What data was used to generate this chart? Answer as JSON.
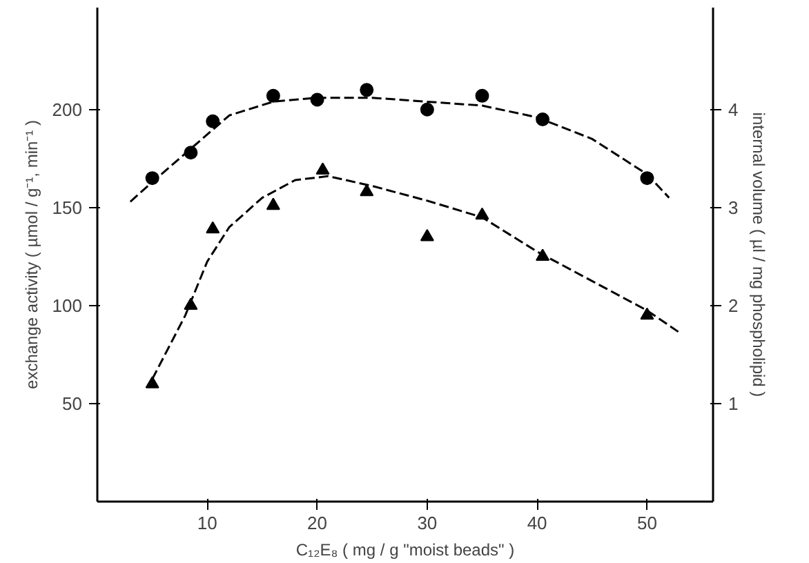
{
  "chart_data": {
    "type": "scatter",
    "xlabel": "C₁₂E₈ ( mg / g \"moist beads\" )",
    "ylabel": "exchange activity ( µmol / g⁻¹, min⁻¹ )",
    "y2label": "internal volume ( µl / mg phospholipid )",
    "xlim": [
      0,
      56
    ],
    "xticks": [
      10,
      20,
      30,
      40,
      50
    ],
    "ylim": [
      0,
      252
    ],
    "yticks": [
      50,
      100,
      150,
      200
    ],
    "y2lim": [
      0,
      5.04
    ],
    "y2ticks": [
      1,
      2,
      3,
      4
    ],
    "grid": false,
    "series": [
      {
        "marker": "circle",
        "color": "#000000",
        "x": [
          5,
          8.5,
          10.5,
          16,
          20,
          24.5,
          30,
          35,
          40.5,
          50
        ],
        "values": [
          165,
          178,
          194,
          207,
          205,
          210,
          200,
          207,
          195,
          165
        ]
      },
      {
        "marker": "triangle",
        "color": "#000000",
        "axis": "y2",
        "x": [
          5,
          8.5,
          10.5,
          16,
          20.5,
          24.5,
          30,
          35,
          40.5,
          50
        ],
        "values": [
          1.2,
          2.0,
          2.78,
          3.02,
          3.38,
          3.16,
          2.7,
          2.92,
          2.5,
          1.9
        ]
      },
      {
        "type": "line",
        "line_style": "dashed",
        "marker": "none",
        "color": "#000000",
        "x": [
          3,
          5,
          8.5,
          12,
          16,
          20,
          25,
          30,
          35,
          40,
          45,
          50,
          52
        ],
        "values": [
          153,
          163,
          180,
          197,
          204,
          206,
          206,
          204,
          202,
          196,
          185,
          167,
          155
        ]
      },
      {
        "type": "line",
        "line_style": "dashed",
        "marker": "none",
        "color": "#000000",
        "axis": "y2",
        "x": [
          5,
          8,
          10,
          12,
          15,
          18,
          21,
          25,
          30,
          35,
          40,
          45,
          50,
          53
        ],
        "values": [
          1.25,
          1.9,
          2.45,
          2.8,
          3.1,
          3.28,
          3.32,
          3.22,
          3.07,
          2.9,
          2.55,
          2.25,
          1.95,
          1.72
        ]
      }
    ]
  }
}
